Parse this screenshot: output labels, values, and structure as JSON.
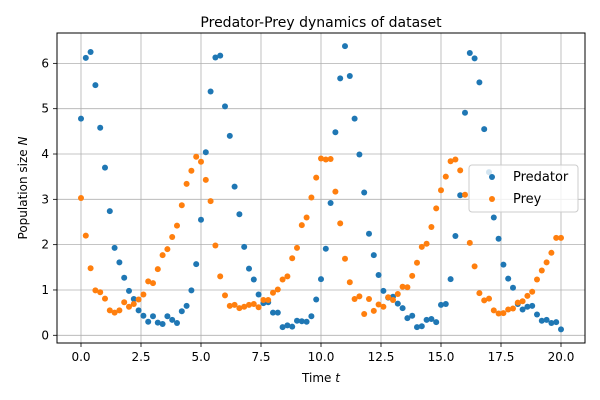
{
  "chart_data": {
    "type": "scatter",
    "title": "Predator-Prey dynamics of dataset",
    "xlabel": "Time",
    "xlabel_var": "t",
    "ylabel": "Population size",
    "ylabel_var": "N",
    "xlim": [
      -1.0,
      21.0
    ],
    "ylim": [
      -0.17,
      6.67
    ],
    "xticks": [
      0.0,
      2.5,
      5.0,
      7.5,
      10.0,
      12.5,
      15.0,
      17.5,
      20.0
    ],
    "xtick_labels": [
      "0.0",
      "2.5",
      "5.0",
      "7.5",
      "10.0",
      "12.5",
      "15.0",
      "17.5",
      "20.0"
    ],
    "yticks": [
      0,
      1,
      2,
      3,
      4,
      5,
      6
    ],
    "ytick_labels": [
      "0",
      "1",
      "2",
      "3",
      "4",
      "5",
      "6"
    ],
    "grid": true,
    "legend_position": "right",
    "series": [
      {
        "name": "Predator",
        "color": "#1f77b4",
        "x": [
          0.0,
          0.2,
          0.4,
          0.6,
          0.8,
          1.0,
          1.2,
          1.4,
          1.6,
          1.8,
          2.0,
          2.2,
          2.4,
          2.6,
          2.8,
          3.0,
          3.2,
          3.4,
          3.6,
          3.8,
          4.0,
          4.2,
          4.4,
          4.6,
          4.8,
          5.0,
          5.2,
          5.4,
          5.6,
          5.8,
          6.0,
          6.2,
          6.4,
          6.6,
          6.8,
          7.0,
          7.2,
          7.4,
          7.6,
          7.8,
          8.0,
          8.2,
          8.4,
          8.6,
          8.8,
          9.0,
          9.2,
          9.4,
          9.6,
          9.8,
          10.0,
          10.2,
          10.4,
          10.6,
          10.8,
          11.0,
          11.2,
          11.4,
          11.6,
          11.8,
          12.0,
          12.2,
          12.4,
          12.6,
          12.8,
          13.0,
          13.2,
          13.4,
          13.6,
          13.8,
          14.0,
          14.2,
          14.4,
          14.6,
          14.8,
          15.0,
          15.2,
          15.4,
          15.6,
          15.8,
          16.0,
          16.2,
          16.4,
          16.6,
          16.8,
          17.0,
          17.2,
          17.4,
          17.6,
          17.8,
          18.0,
          18.2,
          18.4,
          18.6,
          18.8,
          19.0,
          19.2,
          19.4,
          19.6,
          19.8,
          20.0
        ],
        "y": [
          4.78,
          6.12,
          6.25,
          5.52,
          4.58,
          3.7,
          2.74,
          1.93,
          1.61,
          1.27,
          0.98,
          0.8,
          0.55,
          0.43,
          0.3,
          0.42,
          0.28,
          0.25,
          0.42,
          0.34,
          0.27,
          0.53,
          0.65,
          0.99,
          1.57,
          2.55,
          4.04,
          5.38,
          6.13,
          6.17,
          5.05,
          4.4,
          3.28,
          2.67,
          1.95,
          1.47,
          1.23,
          0.9,
          0.71,
          0.73,
          0.5,
          0.5,
          0.18,
          0.22,
          0.19,
          0.32,
          0.31,
          0.3,
          0.42,
          0.79,
          1.24,
          1.91,
          2.92,
          4.48,
          5.67,
          6.38,
          5.72,
          4.78,
          3.99,
          3.15,
          2.24,
          1.77,
          1.33,
          0.98,
          0.83,
          0.85,
          0.7,
          0.6,
          0.38,
          0.43,
          0.18,
          0.2,
          0.34,
          0.36,
          0.29,
          0.67,
          0.69,
          1.24,
          2.19,
          3.09,
          4.91,
          6.23,
          6.11,
          5.58,
          4.55,
          3.6,
          2.6,
          2.13,
          1.56,
          1.25,
          1.05,
          0.69,
          0.57,
          0.63,
          0.65,
          0.46,
          0.32,
          0.34,
          0.27,
          0.29,
          0.13
        ]
      },
      {
        "name": "Prey",
        "color": "#ff7f0e",
        "x": [
          0.0,
          0.2,
          0.4,
          0.6,
          0.8,
          1.0,
          1.2,
          1.4,
          1.6,
          1.8,
          2.0,
          2.2,
          2.4,
          2.6,
          2.8,
          3.0,
          3.2,
          3.4,
          3.6,
          3.8,
          4.0,
          4.2,
          4.4,
          4.6,
          4.8,
          5.0,
          5.2,
          5.4,
          5.6,
          5.8,
          6.0,
          6.2,
          6.4,
          6.6,
          6.8,
          7.0,
          7.2,
          7.4,
          7.6,
          7.8,
          8.0,
          8.2,
          8.4,
          8.6,
          8.8,
          9.0,
          9.2,
          9.4,
          9.6,
          9.8,
          10.0,
          10.2,
          10.4,
          10.6,
          10.8,
          11.0,
          11.2,
          11.4,
          11.6,
          11.8,
          12.0,
          12.2,
          12.4,
          12.6,
          12.8,
          13.0,
          13.2,
          13.4,
          13.6,
          13.8,
          14.0,
          14.2,
          14.4,
          14.6,
          14.8,
          15.0,
          15.2,
          15.4,
          15.6,
          15.8,
          16.0,
          16.2,
          16.4,
          16.6,
          16.8,
          17.0,
          17.2,
          17.4,
          17.6,
          17.8,
          18.0,
          18.2,
          18.4,
          18.6,
          18.8,
          19.0,
          19.2,
          19.4,
          19.6,
          19.8,
          20.0
        ],
        "y": [
          3.03,
          2.2,
          1.48,
          0.99,
          0.95,
          0.81,
          0.55,
          0.5,
          0.55,
          0.73,
          0.63,
          0.69,
          0.79,
          0.9,
          1.19,
          1.15,
          1.46,
          1.77,
          1.9,
          2.17,
          2.42,
          2.87,
          3.34,
          3.63,
          3.94,
          3.83,
          3.43,
          2.96,
          1.98,
          1.3,
          0.88,
          0.65,
          0.67,
          0.6,
          0.63,
          0.67,
          0.69,
          0.62,
          0.78,
          0.78,
          0.94,
          1.01,
          1.23,
          1.3,
          1.7,
          1.93,
          2.43,
          2.6,
          3.04,
          3.48,
          3.9,
          3.88,
          3.89,
          3.17,
          2.47,
          1.69,
          1.17,
          0.8,
          0.86,
          0.47,
          0.8,
          0.54,
          0.68,
          0.63,
          0.84,
          0.78,
          0.91,
          1.07,
          1.06,
          1.31,
          1.6,
          1.95,
          2.02,
          2.39,
          2.8,
          3.2,
          3.5,
          3.84,
          3.88,
          3.64,
          3.1,
          2.04,
          1.52,
          0.93,
          0.77,
          0.81,
          0.55,
          0.48,
          0.49,
          0.57,
          0.59,
          0.72,
          0.75,
          0.87,
          0.96,
          1.23,
          1.43,
          1.61,
          1.82,
          2.15,
          2.15
        ]
      }
    ]
  }
}
